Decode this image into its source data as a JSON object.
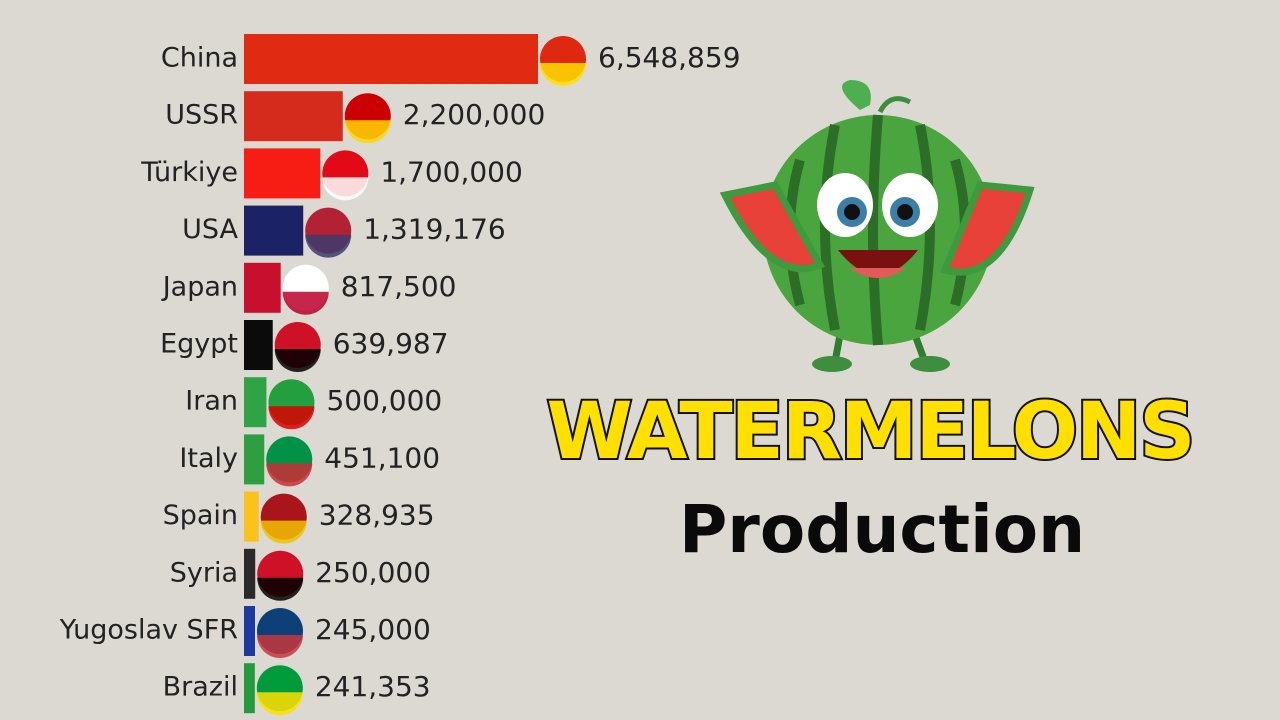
{
  "chart_data": {
    "type": "bar",
    "orientation": "horizontal",
    "title": "WATERMELONS",
    "subtitle": "Production",
    "categories": [
      "China",
      "USSR",
      "Türkiye",
      "USA",
      "Japan",
      "Egypt",
      "Iran",
      "Italy",
      "Spain",
      "Syria",
      "Yugoslav SFR",
      "Brazil"
    ],
    "values": [
      6548859,
      2200000,
      1700000,
      1319176,
      817500,
      639987,
      500000,
      451100,
      328935,
      250000,
      245000,
      241353
    ],
    "value_labels": [
      "6,548,859",
      "2,200,000",
      "1,700,000",
      "1,319,176",
      "817,500",
      "639,987",
      "500,000",
      "451,100",
      "328,935",
      "250,000",
      "245,000",
      "241,353"
    ],
    "colors": [
      "#e02a12",
      "#d42b1c",
      "#f71c14",
      "#1b2366",
      "#c8102e",
      "#0b0b0b",
      "#2ea446",
      "#2f9e40",
      "#fbc21a",
      "#2a2a2a",
      "#1d3b9e",
      "#239b3c"
    ]
  }
}
